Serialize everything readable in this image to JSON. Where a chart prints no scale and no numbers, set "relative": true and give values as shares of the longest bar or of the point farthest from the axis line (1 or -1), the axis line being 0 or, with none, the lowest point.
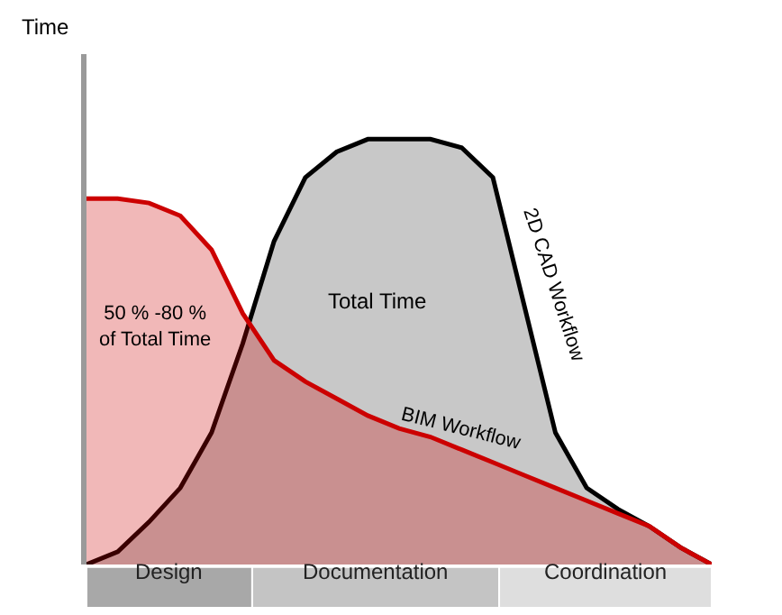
{
  "chart_data": {
    "type": "area",
    "relative": true,
    "ylabel": "Time",
    "categories": [
      null,
      null,
      null,
      null,
      null,
      null,
      null,
      null,
      null,
      null,
      null,
      null,
      null,
      null,
      null,
      null,
      null,
      null,
      null,
      null,
      null
    ],
    "tick_labels": false,
    "legend": false,
    "series": [
      {
        "name": "2D CAD Workflow",
        "color": "#000000",
        "values": [
          0,
          0.03,
          0.1,
          0.18,
          0.31,
          0.52,
          0.76,
          0.91,
          0.97,
          1.0,
          1.0,
          1.0,
          0.98,
          0.91,
          0.61,
          0.31,
          0.18,
          0.13,
          0.09,
          0.04,
          0
        ]
      },
      {
        "name": "BIM Workflow",
        "color": "#cc0000",
        "values": [
          0.86,
          0.86,
          0.85,
          0.82,
          0.74,
          0.59,
          0.48,
          0.43,
          0.39,
          0.35,
          0.32,
          0.3,
          0.27,
          0.24,
          0.21,
          0.18,
          0.15,
          0.12,
          0.09,
          0.04,
          0
        ]
      }
    ],
    "annotations": [
      "Total Time",
      "50 % -80 %\nof Total Time",
      "Design",
      "Documentation",
      "Coordination"
    ]
  }
}
